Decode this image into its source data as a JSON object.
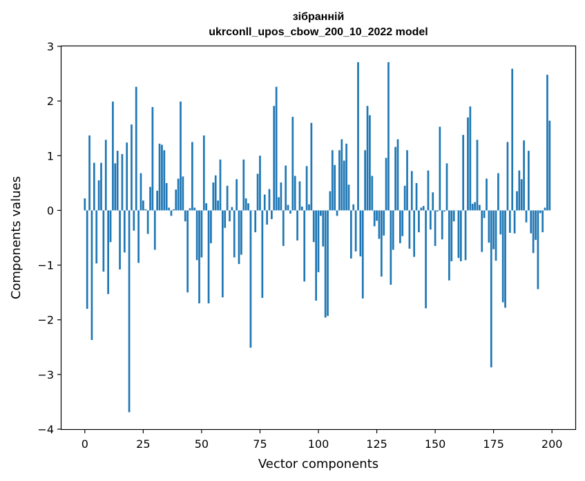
{
  "chart_data": {
    "type": "bar",
    "title": "зібранній",
    "subtitle": "ukrconll_upos_cbow_200_10_2022 model",
    "xlabel": "Vector components",
    "ylabel": "Components values",
    "xlim": [
      -10,
      210
    ],
    "ylim": [
      -4,
      3
    ],
    "xticks": [
      0,
      25,
      50,
      75,
      100,
      125,
      150,
      175,
      200
    ],
    "yticks": [
      -4,
      -3,
      -2,
      -1,
      0,
      1,
      2,
      3
    ],
    "xtick_labels": [
      "0",
      "25",
      "50",
      "75",
      "100",
      "125",
      "150",
      "175",
      "200"
    ],
    "ytick_labels": [
      "−4",
      "−3",
      "−2",
      "−1",
      "0",
      "1",
      "2",
      "3"
    ],
    "bar_color": "#1f77b4",
    "values": [
      0.22,
      -1.8,
      1.37,
      -2.37,
      0.87,
      -0.97,
      0.55,
      0.87,
      -1.12,
      1.29,
      -1.53,
      -0.58,
      1.99,
      0.86,
      1.09,
      -1.08,
      1.03,
      -0.77,
      1.24,
      -3.69,
      1.57,
      -0.37,
      2.26,
      -0.96,
      0.68,
      0.18,
      0.02,
      -0.43,
      0.43,
      1.89,
      -0.72,
      0.36,
      1.22,
      1.2,
      1.1,
      0.5,
      0.05,
      -0.1,
      0.02,
      0.38,
      0.58,
      1.99,
      0.62,
      -0.2,
      -1.5,
      0.04,
      1.25,
      0.05,
      -0.91,
      -1.7,
      -0.86,
      1.37,
      0.13,
      -1.7,
      -0.6,
      0.51,
      0.64,
      0.18,
      0.93,
      -1.59,
      -0.32,
      0.45,
      -0.2,
      0.06,
      -0.86,
      0.57,
      -0.98,
      -0.81,
      0.93,
      0.22,
      0.13,
      -2.51,
      0.0,
      -0.4,
      0.67,
      1.0,
      -1.6,
      0.29,
      -0.26,
      0.39,
      -0.16,
      1.91,
      2.26,
      0.24,
      0.51,
      -0.65,
      0.82,
      0.1,
      -0.06,
      1.71,
      0.63,
      -0.55,
      0.53,
      0.07,
      -1.3,
      0.81,
      0.11,
      1.6,
      -0.58,
      -1.65,
      -1.13,
      -0.1,
      -0.66,
      -1.96,
      -1.93,
      0.35,
      1.1,
      0.83,
      -0.1,
      1.1,
      1.3,
      0.91,
      1.22,
      0.47,
      -0.88,
      0.11,
      -0.75,
      2.71,
      -0.84,
      -1.61,
      1.1,
      1.91,
      1.74,
      0.63,
      -0.29,
      -0.19,
      -0.52,
      -1.21,
      -0.46,
      0.96,
      2.71,
      -1.36,
      -0.72,
      1.16,
      1.3,
      -0.6,
      -0.47,
      0.45,
      1.1,
      -0.7,
      0.72,
      -0.85,
      0.5,
      -0.4,
      0.05,
      0.08,
      -1.79,
      0.73,
      -0.35,
      0.33,
      -0.65,
      -0.02,
      1.53,
      -0.53,
      -0.02,
      0.86,
      -1.28,
      -0.93,
      -0.2,
      0.0,
      -0.87,
      -0.93,
      1.38,
      -0.91,
      1.7,
      1.9,
      0.12,
      0.15,
      1.29,
      0.1,
      -0.76,
      -0.14,
      0.58,
      -0.59,
      -2.87,
      -0.71,
      -0.92,
      0.68,
      -0.44,
      -1.68,
      -1.78,
      1.25,
      -0.41,
      2.59,
      -0.42,
      0.35,
      0.73,
      0.57,
      1.28,
      -0.22,
      1.09,
      -0.42,
      -0.78,
      -0.54,
      -1.44,
      -0.05,
      -0.4,
      0.05,
      2.48,
      1.64
    ]
  }
}
